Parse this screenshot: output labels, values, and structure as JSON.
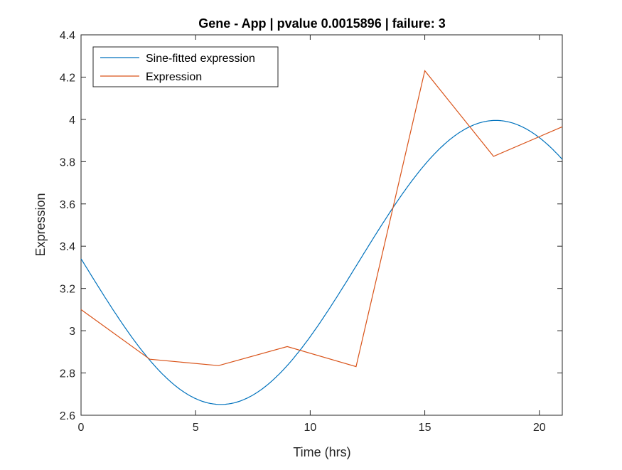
{
  "chart_data": {
    "type": "line",
    "title": "Gene - App | pvalue 0.0015896 | failure: 3",
    "xlabel": "Time (hrs)",
    "ylabel": "Expression",
    "xlim": [
      0,
      21
    ],
    "ylim": [
      2.6,
      4.4
    ],
    "xticks": [
      0,
      5,
      10,
      15,
      20
    ],
    "xtick_labels": [
      "0",
      "5",
      "10",
      "15",
      "20"
    ],
    "yticks": [
      2.6,
      2.8,
      3.0,
      3.2,
      3.4,
      3.6,
      3.8,
      4.0,
      4.2,
      4.4
    ],
    "ytick_labels": [
      "2.6",
      "2.8",
      "3",
      "3.2",
      "3.4",
      "3.6",
      "3.8",
      "4",
      "4.2",
      "4.4"
    ],
    "grid": false,
    "legend_position": "top-left",
    "series": [
      {
        "name": "Sine-fitted expression",
        "color": "#0072BD",
        "kind": "sine",
        "mean": 3.323,
        "amplitude": 0.672,
        "period": 24,
        "peak_time": 18.1,
        "x": [
          0,
          3,
          6,
          9,
          12,
          15,
          18,
          21
        ],
        "values": [
          3.34,
          2.86,
          2.65,
          2.85,
          3.33,
          3.8,
          3.99,
          3.81
        ]
      },
      {
        "name": "Expression",
        "color": "#D95319",
        "kind": "points",
        "x": [
          0,
          3,
          6,
          9,
          12,
          15,
          18,
          21
        ],
        "values": [
          3.1,
          2.865,
          2.835,
          2.925,
          2.83,
          4.23,
          3.825,
          3.965
        ]
      }
    ]
  }
}
